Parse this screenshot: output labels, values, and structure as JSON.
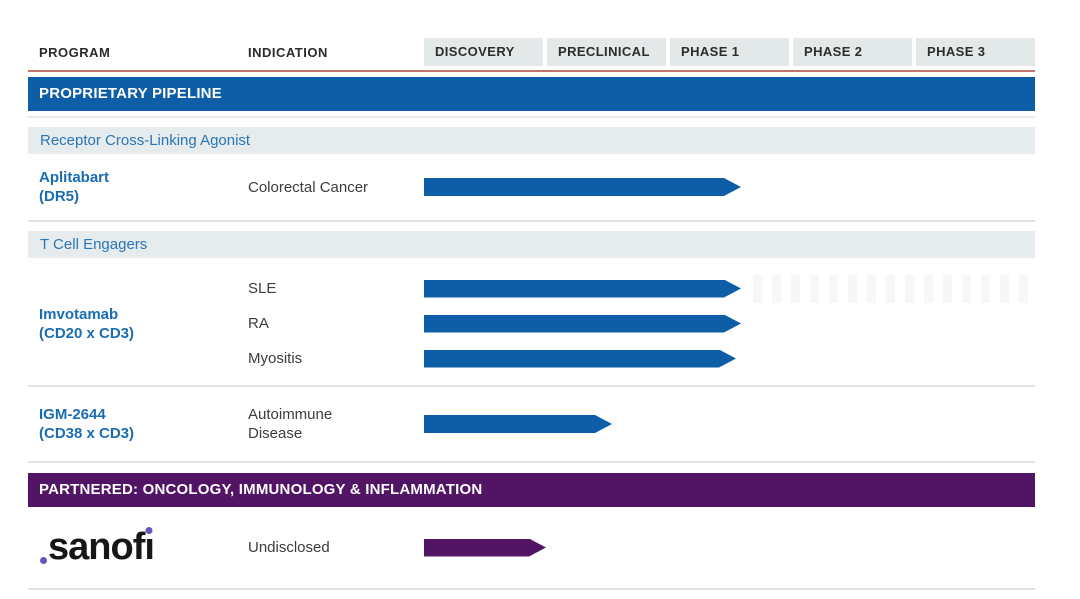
{
  "header": {
    "program_label": "PROGRAM",
    "indication_label": "INDICATION",
    "phases": [
      "DISCOVERY",
      "PRECLINICAL",
      "PHASE 1",
      "PHASE 2",
      "PHASE 3"
    ]
  },
  "proprietary": {
    "banner": "PROPRIETARY PIPELINE",
    "sections": [
      {
        "title": "Receptor Cross-Linking Agonist",
        "programs": [
          {
            "name": "Aplitabart",
            "target": "(DR5)",
            "rows": [
              {
                "indication": "Colorectal Cancer",
                "progress": 2.6
              }
            ]
          }
        ]
      },
      {
        "title": "T Cell Engagers",
        "programs": [
          {
            "name": "Imvotamab",
            "target": "(CD20 x CD3)",
            "rows": [
              {
                "indication": "SLE",
                "progress": 2.6
              },
              {
                "indication": "RA",
                "progress": 2.6
              },
              {
                "indication": "Myositis",
                "progress": 2.56
              }
            ]
          },
          {
            "name": "IGM-2644",
            "target": "(CD38 x CD3)",
            "rows": [
              {
                "indication": "Autoimmune Disease",
                "progress": 1.54
              }
            ]
          }
        ]
      }
    ]
  },
  "partnered": {
    "banner": "PARTNERED: ONCOLOGY, IMMUNOLOGY & INFLAMMATION",
    "programs": [
      {
        "name": "sanofi",
        "rows": [
          {
            "indication": "Undisclosed",
            "progress": 1.0
          }
        ]
      }
    ]
  },
  "colors": {
    "banner_blue": "#0d5ea7",
    "arrow_blue": "#0d5ea7",
    "banner_purple": "#521566",
    "arrow_purple": "#521566",
    "section_bar_bg": "#e6ebee",
    "section_bar_text": "#2a76b2",
    "phase_box_bg": "#e3e8e9",
    "program_name_blue": "#1a6cb3",
    "header_underline_red": "#c2736b",
    "sanofi_dot_purple": "#6457b8"
  },
  "chart_data": {
    "type": "bar",
    "orientation": "horizontal",
    "title": "",
    "phase_axis": [
      "DISCOVERY",
      "PRECLINICAL",
      "PHASE 1",
      "PHASE 2",
      "PHASE 3"
    ],
    "axis_note": "progress measured in phase-column units: 0 = start of Discovery, 1 = end of Discovery, 5 = end of Phase 3",
    "series": [
      {
        "section": "PROPRIETARY PIPELINE / Receptor Cross-Linking Agonist",
        "program": "Aplitabart (DR5)",
        "indication": "Colorectal Cancer",
        "progress": 2.6,
        "stage_reached": "PHASE 1",
        "color": "#0d5ea7"
      },
      {
        "section": "PROPRIETARY PIPELINE / T Cell Engagers",
        "program": "Imvotamab (CD20 x CD3)",
        "indication": "SLE",
        "progress": 2.6,
        "stage_reached": "PHASE 1",
        "color": "#0d5ea7"
      },
      {
        "section": "PROPRIETARY PIPELINE / T Cell Engagers",
        "program": "Imvotamab (CD20 x CD3)",
        "indication": "RA",
        "progress": 2.6,
        "stage_reached": "PHASE 1",
        "color": "#0d5ea7"
      },
      {
        "section": "PROPRIETARY PIPELINE / T Cell Engagers",
        "program": "Imvotamab (CD20 x CD3)",
        "indication": "Myositis",
        "progress": 2.56,
        "stage_reached": "PHASE 1",
        "color": "#0d5ea7"
      },
      {
        "section": "PROPRIETARY PIPELINE / T Cell Engagers",
        "program": "IGM-2644 (CD38 x CD3)",
        "indication": "Autoimmune Disease",
        "progress": 1.54,
        "stage_reached": "PRECLINICAL",
        "color": "#0d5ea7"
      },
      {
        "section": "PARTNERED: ONCOLOGY, IMMUNOLOGY & INFLAMMATION",
        "program": "sanofi",
        "indication": "Undisclosed",
        "progress": 1.0,
        "stage_reached": "DISCOVERY",
        "color": "#521566"
      }
    ],
    "legend": "none",
    "grid": "off"
  }
}
